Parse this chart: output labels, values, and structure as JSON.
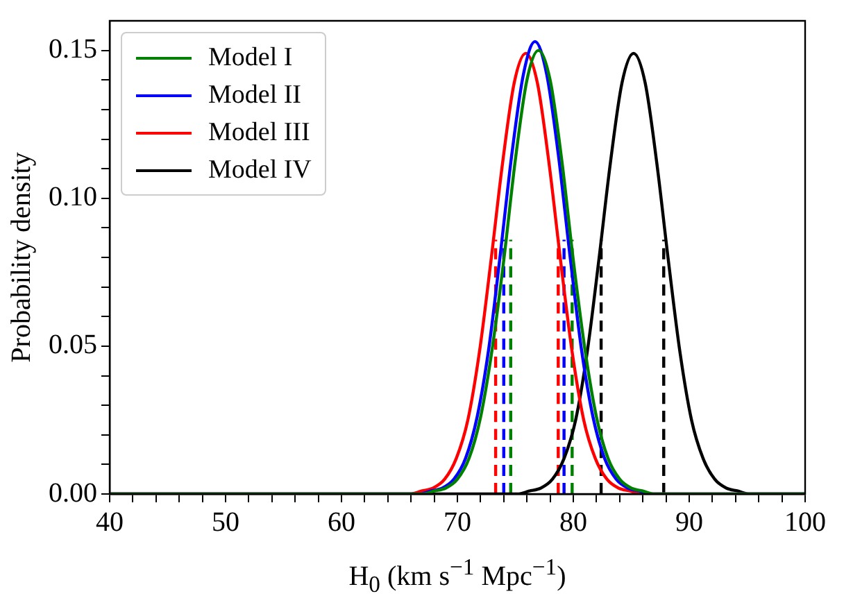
{
  "chart_data": {
    "type": "line",
    "xlabel": "H$_{0}$ (km s$^{−1}$ Mpc$^{−1}$)",
    "ylabel": "Probability density",
    "xlim": [
      40,
      100
    ],
    "ylim": [
      0,
      0.16
    ],
    "xticks": [
      40,
      {
        "value": 42,
        "label": null
      },
      {
        "value": 44,
        "label": null
      },
      {
        "value": 46,
        "label": null
      },
      {
        "value": 48,
        "label": null
      },
      50,
      {
        "value": 52,
        "label": null
      },
      {
        "value": 54,
        "label": null
      },
      {
        "value": 56,
        "label": null
      },
      {
        "value": 58,
        "label": null
      },
      60,
      {
        "value": 62,
        "label": null
      },
      {
        "value": 64,
        "label": null
      },
      {
        "value": 66,
        "label": null
      },
      {
        "value": 68,
        "label": null
      },
      70,
      {
        "value": 72,
        "label": null
      },
      {
        "value": 74,
        "label": null
      },
      {
        "value": 76,
        "label": null
      },
      {
        "value": 78,
        "label": null
      },
      80,
      {
        "value": 82,
        "label": null
      },
      {
        "value": 84,
        "label": null
      },
      {
        "value": 86,
        "label": null
      },
      {
        "value": 88,
        "label": null
      },
      90,
      {
        "value": 92,
        "label": null
      },
      {
        "value": 94,
        "label": null
      },
      {
        "value": 96,
        "label": null
      },
      {
        "value": 98,
        "label": null
      },
      100
    ],
    "yticks": [
      {
        "value": 0,
        "label": "0.00"
      },
      {
        "value": 0.01,
        "label": null
      },
      {
        "value": 0.02,
        "label": null
      },
      {
        "value": 0.03,
        "label": null
      },
      {
        "value": 0.04,
        "label": null
      },
      {
        "value": 0.05,
        "label": "0.05"
      },
      {
        "value": 0.06,
        "label": null
      },
      {
        "value": 0.07,
        "label": null
      },
      {
        "value": 0.08,
        "label": null
      },
      {
        "value": 0.09,
        "label": null
      },
      {
        "value": 0.1,
        "label": "0.10"
      },
      {
        "value": 0.11,
        "label": null
      },
      {
        "value": 0.12,
        "label": null
      },
      {
        "value": 0.13,
        "label": null
      },
      {
        "value": 0.14,
        "label": null
      },
      {
        "value": 0.15,
        "label": "0.15"
      }
    ],
    "grid": false,
    "legend": "top left",
    "marker": "none",
    "line_style": "solid",
    "series": [
      {
        "name": "Model I",
        "color": "#008000",
        "x": [
          40,
          67,
          68,
          69,
          70,
          71,
          72,
          73,
          74,
          75,
          76,
          77,
          78,
          79,
          80,
          81,
          82,
          83,
          84,
          85,
          86,
          87,
          100
        ],
        "values": [
          0,
          0,
          0.001,
          0.002,
          0.005,
          0.012,
          0.026,
          0.049,
          0.079,
          0.113,
          0.14,
          0.15,
          0.14,
          0.113,
          0.079,
          0.049,
          0.026,
          0.012,
          0.005,
          0.002,
          0.001,
          0,
          0
        ]
      },
      {
        "name": "Model II",
        "color": "#0000ff",
        "x": [
          40,
          66.7,
          67.7,
          68.7,
          69.7,
          70.7,
          71.7,
          72.7,
          73.7,
          74.7,
          75.7,
          76.7,
          77.7,
          78.7,
          79.7,
          80.7,
          81.7,
          82.7,
          83.7,
          84.7,
          85.7,
          86.7,
          100
        ],
        "values": [
          0,
          0,
          0.001,
          0.002,
          0.005,
          0.012,
          0.026,
          0.049,
          0.081,
          0.115,
          0.142,
          0.153,
          0.142,
          0.115,
          0.081,
          0.049,
          0.026,
          0.012,
          0.005,
          0.002,
          0.001,
          0,
          0
        ]
      },
      {
        "name": "Model III",
        "color": "#ff0000",
        "x": [
          40,
          65.9,
          66.9,
          67.9,
          68.9,
          69.9,
          70.9,
          71.9,
          72.9,
          73.9,
          74.9,
          75.9,
          76.9,
          77.9,
          78.9,
          79.9,
          80.9,
          81.9,
          82.9,
          83.9,
          84.9,
          85.9,
          100
        ],
        "values": [
          0,
          0,
          0.001,
          0.002,
          0.005,
          0.012,
          0.025,
          0.048,
          0.079,
          0.112,
          0.139,
          0.149,
          0.139,
          0.112,
          0.079,
          0.048,
          0.025,
          0.012,
          0.005,
          0.002,
          0.001,
          0,
          0
        ]
      },
      {
        "name": "Model IV",
        "color": "#000000",
        "x": [
          40,
          75.2,
          76.2,
          77.2,
          78.2,
          79.2,
          80.2,
          81.2,
          82.2,
          83.2,
          84.2,
          85.2,
          86.2,
          87.2,
          88.2,
          89.2,
          90.2,
          91.2,
          92.2,
          93.2,
          94.2,
          95.2,
          100
        ],
        "values": [
          0,
          0,
          0.001,
          0.002,
          0.005,
          0.012,
          0.025,
          0.048,
          0.079,
          0.112,
          0.139,
          0.149,
          0.139,
          0.112,
          0.079,
          0.048,
          0.025,
          0.012,
          0.005,
          0.002,
          0.001,
          0,
          0
        ]
      },
      {
        "color": "#008000",
        "line_style": "dashed",
        "x": [
          74.6,
          74.6
        ],
        "values": [
          0,
          0.086
        ]
      },
      {
        "color": "#008000",
        "line_style": "dashed",
        "x": [
          79.9,
          79.9
        ],
        "values": [
          0,
          0.086
        ]
      },
      {
        "color": "#0000ff",
        "line_style": "dashed",
        "x": [
          74.0,
          74.0
        ],
        "values": [
          0,
          0.086
        ]
      },
      {
        "color": "#0000ff",
        "line_style": "dashed",
        "x": [
          79.2,
          79.2
        ],
        "values": [
          0,
          0.086
        ]
      },
      {
        "color": "#ff0000",
        "line_style": "dashed",
        "x": [
          73.3,
          73.3
        ],
        "values": [
          0,
          0.086
        ]
      },
      {
        "color": "#ff0000",
        "line_style": "dashed",
        "x": [
          78.7,
          78.7
        ],
        "values": [
          0,
          0.086
        ]
      },
      {
        "color": "#000000",
        "line_style": "dashed",
        "x": [
          82.4,
          82.4
        ],
        "values": [
          0,
          0.086
        ]
      },
      {
        "color": "#000000",
        "line_style": "dashed",
        "x": [
          87.8,
          87.8
        ],
        "values": [
          0,
          0.086
        ]
      }
    ]
  }
}
